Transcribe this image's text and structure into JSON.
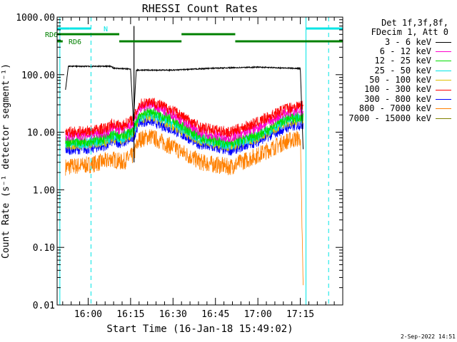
{
  "chart_data": {
    "type": "line",
    "title": "RHESSI Count Rates",
    "xlabel": "Start Time (16-Jan-18 15:49:02)",
    "ylabel": "Count Rate (s⁻¹ detector segment⁻¹)",
    "y_scale": "log",
    "ylim": [
      0.01,
      1000
    ],
    "xlim": [
      "15:49:02",
      "17:30:00"
    ],
    "ytick_labels": [
      "0.01",
      "0.10",
      "1.00",
      "10.00",
      "100.00",
      "1000.00"
    ],
    "xtick_labels": [
      "16:00",
      "16:15",
      "16:30",
      "16:45",
      "17:00",
      "17:15"
    ],
    "x_tick_minutes": [
      660,
      675,
      690,
      705,
      720,
      735
    ],
    "grid": false,
    "legend_position": "right of plot",
    "legend_header": [
      "Det 1f,3f,8f,",
      "FDecim 1, Att 0"
    ],
    "series": [
      {
        "name": "3 - 6 keV",
        "color": "#000000",
        "x": [
          652,
          653,
          668,
          669,
          675,
          676,
          677,
          690,
          705,
          720,
          735,
          736
        ],
        "y": [
          55,
          140,
          140,
          130,
          125,
          15,
          120,
          120,
          130,
          135,
          128,
          5
        ]
      },
      {
        "name": "6 - 12 keV",
        "color": "#ff00cc",
        "x": [
          652,
          660,
          667,
          668,
          672,
          676,
          678,
          682,
          690,
          700,
          710,
          720,
          730,
          736
        ],
        "y": [
          8.5,
          9,
          10,
          12,
          11,
          14,
          26,
          30,
          20,
          10,
          8,
          12,
          22,
          24
        ]
      },
      {
        "name": "12 - 25 keV",
        "color": "#00dd00",
        "x": [
          652,
          660,
          667,
          668,
          672,
          676,
          678,
          682,
          690,
          700,
          710,
          720,
          730,
          736
        ],
        "y": [
          6.8,
          7,
          8,
          9,
          8.5,
          11,
          20,
          23,
          16,
          8,
          6.5,
          9,
          17,
          19
        ]
      },
      {
        "name": "25 - 50 keV",
        "color": "#00e5e5",
        "x": [
          652,
          660,
          667,
          668,
          672,
          676,
          678,
          682,
          690,
          700,
          710,
          720,
          730,
          736
        ],
        "y": [
          6.5,
          6.5,
          7.5,
          8.5,
          8,
          10,
          18,
          21,
          14,
          7.5,
          6,
          8.5,
          16,
          18
        ]
      },
      {
        "name": "50 - 100 keV",
        "color": "#e0c000",
        "x": [
          652,
          660,
          667,
          668,
          672,
          676,
          678,
          682,
          690,
          700,
          710,
          720,
          730,
          736
        ],
        "y": [
          6,
          6.2,
          7,
          8,
          7.5,
          9.5,
          17,
          19,
          13,
          7,
          5.8,
          8,
          15,
          17
        ]
      },
      {
        "name": "100 - 300 keV",
        "color": "#ff0000",
        "x": [
          652,
          660,
          667,
          668,
          672,
          676,
          678,
          682,
          690,
          700,
          710,
          720,
          730,
          736
        ],
        "y": [
          10,
          10.5,
          12,
          14,
          13,
          17,
          30,
          35,
          24,
          12,
          10,
          15,
          26,
          30
        ]
      },
      {
        "name": "300 - 800 keV",
        "color": "#0000ff",
        "x": [
          652,
          660,
          667,
          668,
          672,
          676,
          678,
          682,
          690,
          700,
          710,
          720,
          730,
          736
        ],
        "y": [
          5,
          5.2,
          6,
          7,
          6.5,
          8,
          15,
          16,
          11,
          6,
          4.8,
          7,
          12,
          14
        ]
      },
      {
        "name": "800 - 7000 keV",
        "color": "#ff8000",
        "x": [
          652,
          660,
          667,
          668,
          672,
          676,
          678,
          682,
          690,
          700,
          710,
          720,
          730,
          735,
          736
        ],
        "y": [
          2.5,
          2.7,
          3.2,
          3.5,
          3,
          4,
          7.5,
          8.5,
          5.5,
          3,
          2.5,
          4,
          7,
          8,
          0.02
        ]
      },
      {
        "name": "7000 - 15000 keV",
        "color": "#808000",
        "x": [],
        "y": []
      }
    ],
    "annotations": {
      "labels": [
        "N",
        "RD6",
        "RD6"
      ],
      "cyan_dashed_lines_x": [
        661,
        745
      ],
      "cyan_solid_lines_x": [
        650,
        737
      ]
    }
  },
  "footer": {
    "timestamp": "2-Sep-2022 14:51"
  }
}
